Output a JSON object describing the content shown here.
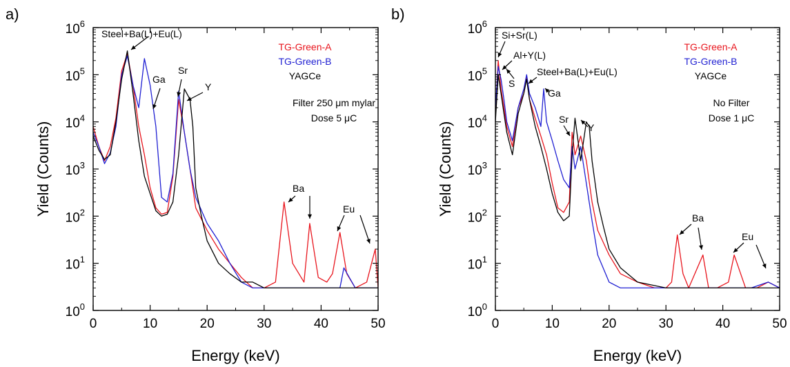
{
  "chart_data": [
    {
      "type": "line",
      "panel_label": "a)",
      "xlabel": "Energy (keV)",
      "ylabel": "Yield (Counts)",
      "xlim": [
        0,
        50
      ],
      "ylim": [
        1,
        1000000
      ],
      "yscale": "log",
      "x_ticks": [
        "0",
        "10",
        "20",
        "30",
        "40",
        "50"
      ],
      "y_ticks": [
        {
          "base": "10",
          "exp": "0"
        },
        {
          "base": "10",
          "exp": "1"
        },
        {
          "base": "10",
          "exp": "2"
        },
        {
          "base": "10",
          "exp": "3"
        },
        {
          "base": "10",
          "exp": "4"
        },
        {
          "base": "10",
          "exp": "5"
        },
        {
          "base": "10",
          "exp": "6"
        }
      ],
      "grid": false,
      "legend_position": "top-right",
      "conditions": [
        "Filter 250 μm mylar",
        "Dose 5 μC"
      ],
      "series": [
        {
          "name": "TG-Green-A",
          "color": "#e8141c",
          "x": [
            0,
            1,
            2,
            3,
            4,
            5,
            6,
            7,
            8,
            9,
            10,
            11,
            12,
            13,
            14,
            15,
            16,
            17,
            18,
            20,
            22,
            24,
            26,
            28,
            30,
            32,
            33.5,
            35,
            37,
            38,
            39.5,
            41,
            42,
            43.3,
            44.5,
            46,
            48,
            49.5,
            50
          ],
          "y": [
            8000,
            3000,
            1500,
            3000,
            12000,
            120000,
            280000,
            60000,
            8000,
            2000,
            400,
            150,
            110,
            120,
            700,
            30000,
            6000,
            1000,
            150,
            50,
            20,
            10,
            5,
            3,
            3,
            4,
            200,
            10,
            4,
            70,
            5,
            4,
            6,
            45,
            6,
            3,
            4,
            20,
            3
          ]
        },
        {
          "name": "TG-Green-B",
          "color": "#1f1fd2",
          "x": [
            0,
            1,
            2,
            3,
            4,
            5,
            6,
            7,
            8,
            9,
            10,
            11,
            12,
            13,
            14,
            15,
            16,
            17,
            18,
            20,
            22,
            24,
            26,
            28,
            30,
            33.5,
            38,
            43.3,
            44,
            46,
            48,
            50
          ],
          "y": [
            6000,
            3000,
            1300,
            2200,
            8000,
            100000,
            250000,
            60000,
            20000,
            220000,
            60000,
            8000,
            250,
            200,
            800,
            45000,
            6000,
            1000,
            250,
            70,
            30,
            10,
            4,
            3,
            3,
            3,
            3,
            3,
            8,
            3,
            3,
            3
          ]
        },
        {
          "name": "YAGCe",
          "color": "#000000",
          "x": [
            0,
            1,
            2,
            3,
            4,
            5,
            6,
            7,
            8,
            9,
            10,
            11,
            12,
            13,
            14,
            15,
            16,
            17,
            17.5,
            18,
            19,
            20,
            22,
            24,
            26,
            28,
            30,
            33,
            36,
            40,
            44,
            48,
            50
          ],
          "y": [
            5000,
            2500,
            1600,
            2000,
            10000,
            80000,
            320000,
            40000,
            4000,
            700,
            300,
            130,
            100,
            110,
            200,
            2000,
            50000,
            30000,
            8000,
            400,
            100,
            30,
            10,
            6,
            4,
            4,
            3,
            3,
            3,
            3,
            3,
            3,
            3
          ]
        }
      ],
      "annotations": [
        "Steel+Ba(L)+Eu(L)",
        "Ga",
        "Sr",
        "Y",
        "Ba",
        "Eu"
      ]
    },
    {
      "type": "line",
      "panel_label": "b)",
      "xlabel": "Energy (keV)",
      "ylabel": "Yield (Counts)",
      "xlim": [
        0,
        50
      ],
      "ylim": [
        1,
        1000000
      ],
      "yscale": "log",
      "x_ticks": [
        "0",
        "10",
        "20",
        "30",
        "40",
        "50"
      ],
      "y_ticks": [
        {
          "base": "10",
          "exp": "0"
        },
        {
          "base": "10",
          "exp": "1"
        },
        {
          "base": "10",
          "exp": "2"
        },
        {
          "base": "10",
          "exp": "3"
        },
        {
          "base": "10",
          "exp": "4"
        },
        {
          "base": "10",
          "exp": "5"
        },
        {
          "base": "10",
          "exp": "6"
        }
      ],
      "grid": false,
      "legend_position": "top-right",
      "conditions": [
        "No Filter",
        "Dose 1 μC"
      ],
      "series": [
        {
          "name": "TG-Green-A",
          "color": "#e8141c",
          "x": [
            0,
            0.5,
            1,
            1.5,
            2,
            3,
            4,
            5,
            5.5,
            6,
            7,
            8,
            9,
            10,
            11,
            12,
            13,
            13.5,
            14,
            15,
            16,
            17,
            18,
            20,
            22,
            25,
            28,
            30,
            31,
            32,
            33,
            34,
            36.5,
            37.5,
            39,
            41,
            42,
            44,
            46,
            48,
            50
          ],
          "y": [
            15000,
            200000,
            50000,
            20000,
            8000,
            3000,
            20000,
            40000,
            90000,
            30000,
            12000,
            5000,
            2000,
            500,
            150,
            120,
            200,
            6000,
            2000,
            5000,
            1500,
            200,
            50,
            15,
            6,
            4,
            3,
            3,
            4,
            40,
            6,
            3,
            15,
            3,
            3,
            4,
            15,
            3,
            3,
            4,
            3
          ]
        },
        {
          "name": "TG-Green-B",
          "color": "#1f1fd2",
          "x": [
            0,
            0.5,
            1,
            1.5,
            2,
            3,
            4,
            5,
            5.5,
            6,
            7,
            8,
            8.5,
            9,
            10,
            11,
            12,
            13,
            13.5,
            14,
            15,
            16,
            17,
            18,
            20,
            22,
            25,
            30,
            35,
            40,
            45,
            48,
            50
          ],
          "y": [
            20000,
            150000,
            80000,
            30000,
            10000,
            4000,
            20000,
            50000,
            100000,
            40000,
            20000,
            8000,
            50000,
            10000,
            4000,
            1500,
            600,
            400,
            3000,
            1000,
            3000,
            500,
            80,
            15,
            4,
            3,
            3,
            3,
            3,
            3,
            3,
            4,
            3
          ]
        },
        {
          "name": "YAGCe",
          "color": "#000000",
          "x": [
            0,
            0.5,
            1,
            1.5,
            2,
            3,
            4,
            5,
            5.5,
            6,
            7,
            8,
            9,
            10,
            11,
            12,
            13,
            13.5,
            14,
            15,
            16,
            16.5,
            17,
            18,
            19,
            20,
            22,
            25,
            30,
            35,
            40,
            45,
            48,
            50
          ],
          "y": [
            10000,
            100000,
            40000,
            15000,
            6000,
            2000,
            15000,
            40000,
            80000,
            30000,
            8000,
            3000,
            1000,
            300,
            120,
            80,
            100,
            2000,
            12000,
            1500,
            10000,
            8000,
            1500,
            200,
            60,
            20,
            8,
            4,
            3,
            3,
            3,
            3,
            3,
            3
          ]
        }
      ],
      "annotations": [
        "Si+Sr(L)",
        "Al+Y(L)",
        "S",
        "Steel+Ba(L)+Eu(L)",
        "Ga",
        "Sr",
        "Y",
        "Ba",
        "Eu"
      ]
    }
  ]
}
